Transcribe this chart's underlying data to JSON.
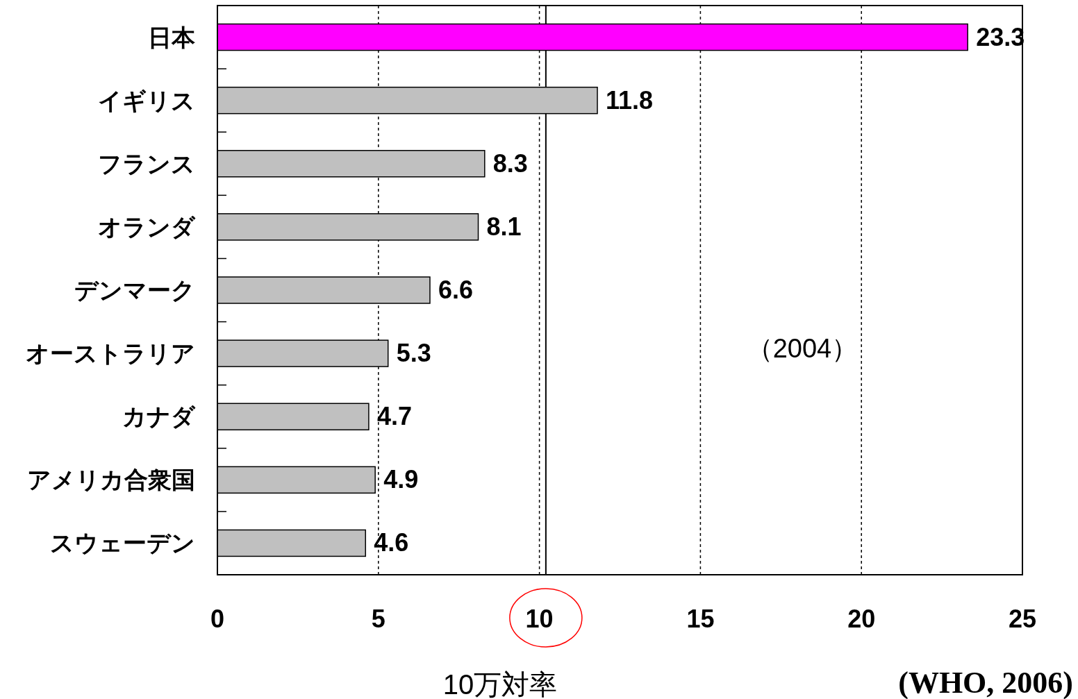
{
  "chart_data": {
    "type": "bar",
    "orientation": "horizontal",
    "categories": [
      "日本",
      "イギリス",
      "フランス",
      "オランダ",
      "デンマーク",
      "オーストラリア",
      "カナダ",
      "アメリカ合衆国",
      "スウェーデン"
    ],
    "values": [
      23.3,
      11.8,
      8.3,
      8.1,
      6.6,
      5.3,
      4.7,
      4.9,
      4.6
    ],
    "colors": [
      "#ff00ff",
      "#c0c0c0",
      "#c0c0c0",
      "#c0c0c0",
      "#c0c0c0",
      "#c0c0c0",
      "#c0c0c0",
      "#c0c0c0",
      "#c0c0c0"
    ],
    "xlim": [
      0,
      25
    ],
    "xticks": [
      0,
      5,
      10,
      15,
      20,
      25
    ],
    "xlabel": "10万対率",
    "grid": "x",
    "data_labels": true,
    "ref_lines": [
      {
        "axis": "x",
        "value": 10.2,
        "color": "#000000",
        "line_style": "solid"
      }
    ],
    "annotations": [
      "（2004）",
      "(WHO, 2006)"
    ]
  }
}
